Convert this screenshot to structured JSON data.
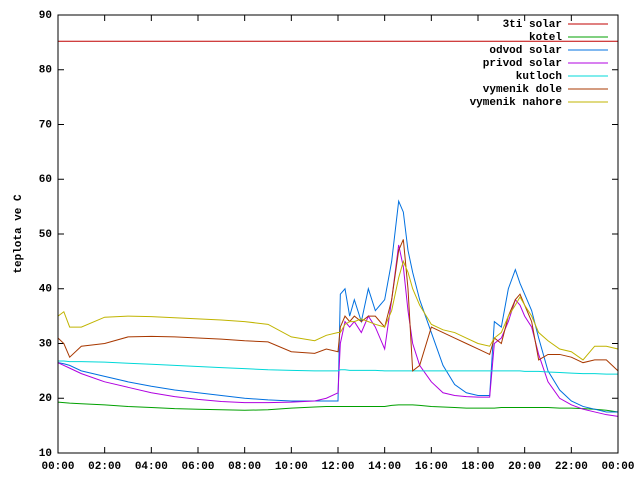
{
  "chart_data": {
    "type": "line",
    "y_label": "teplota ve C",
    "x": [
      0,
      0.25,
      0.5,
      1,
      2,
      3,
      4,
      5,
      6,
      7,
      8,
      9,
      10,
      11,
      11.5,
      12,
      12.1,
      12.3,
      12.5,
      12.7,
      13,
      13.3,
      13.6,
      14,
      14.3,
      14.6,
      14.8,
      15,
      15.2,
      15.5,
      16,
      16.5,
      17,
      17.5,
      18,
      18.5,
      18.7,
      19,
      19.3,
      19.6,
      19.8,
      20,
      20.3,
      20.6,
      21,
      21.5,
      22,
      22.5,
      23,
      23.5,
      24
    ],
    "xlim": [
      0,
      24
    ],
    "xticks": [
      {
        "value": 0,
        "label": "00:00"
      },
      {
        "value": 2,
        "label": "02:00"
      },
      {
        "value": 4,
        "label": "04:00"
      },
      {
        "value": 6,
        "label": "06:00"
      },
      {
        "value": 8,
        "label": "08:00"
      },
      {
        "value": 10,
        "label": "10:00"
      },
      {
        "value": 12,
        "label": "12:00"
      },
      {
        "value": 14,
        "label": "14:00"
      },
      {
        "value": 16,
        "label": "16:00"
      },
      {
        "value": 18,
        "label": "18:00"
      },
      {
        "value": 20,
        "label": "20:00"
      },
      {
        "value": 22,
        "label": "22:00"
      },
      {
        "value": 24,
        "label": "00:00"
      }
    ],
    "ylim": [
      10,
      90
    ],
    "yticks": [
      10,
      20,
      30,
      40,
      50,
      60,
      70,
      80,
      90
    ],
    "grid": false,
    "legend": "top-right",
    "series": [
      {
        "name": "3ti solar",
        "color": "#c00000",
        "values": [
          85.2,
          85.2,
          85.2,
          85.2,
          85.2,
          85.2,
          85.2,
          85.2,
          85.2,
          85.2,
          85.2,
          85.2,
          85.2,
          85.2,
          85.2,
          85.2,
          85.2,
          85.2,
          85.2,
          85.2,
          85.2,
          85.2,
          85.2,
          85.2,
          85.2,
          85.2,
          85.2,
          85.2,
          85.2,
          85.2,
          85.2,
          85.2,
          85.2,
          85.2,
          85.2,
          85.2,
          85.2,
          85.2,
          85.2,
          85.2,
          85.2,
          85.2,
          85.2,
          85.2,
          85.2,
          85.2,
          85.2,
          85.2,
          85.2,
          85.2,
          85.2
        ]
      },
      {
        "name": "kotel",
        "color": "#00a000",
        "values": [
          19.3,
          19.2,
          19.1,
          19,
          18.8,
          18.5,
          18.3,
          18.1,
          18,
          17.9,
          17.8,
          17.9,
          18.2,
          18.4,
          18.5,
          18.5,
          18.5,
          18.5,
          18.5,
          18.5,
          18.5,
          18.5,
          18.5,
          18.5,
          18.7,
          18.8,
          18.8,
          18.8,
          18.8,
          18.7,
          18.5,
          18.4,
          18.3,
          18.2,
          18.2,
          18.2,
          18.2,
          18.3,
          18.3,
          18.3,
          18.3,
          18.3,
          18.3,
          18.3,
          18.3,
          18.2,
          18.2,
          18.1,
          18,
          17.8,
          17.5
        ]
      },
      {
        "name": "odvod solar",
        "color": "#0070e0",
        "values": [
          26.5,
          26.3,
          26,
          25,
          24,
          23,
          22.2,
          21.5,
          21,
          20.5,
          20,
          19.7,
          19.5,
          19.5,
          19.5,
          19.5,
          39,
          40,
          35,
          38,
          34,
          40,
          36,
          38,
          45,
          56,
          54,
          47,
          43,
          38,
          32,
          26,
          22.5,
          21,
          20.5,
          20.5,
          34,
          33,
          40,
          43.5,
          41,
          39,
          36,
          31,
          25,
          21.5,
          19.5,
          18.5,
          18,
          17.5,
          17.5
        ]
      },
      {
        "name": "privod solar",
        "color": "#b000e0",
        "values": [
          26.5,
          26,
          25.5,
          24.5,
          23,
          22,
          21,
          20.3,
          19.8,
          19.4,
          19.2,
          19.2,
          19.3,
          19.5,
          20,
          21,
          30,
          34,
          33,
          34,
          32,
          35,
          33,
          29,
          38,
          48,
          44,
          36,
          30,
          26,
          23,
          21,
          20.5,
          20.3,
          20.2,
          20.2,
          30,
          31,
          34,
          38,
          37,
          35,
          33,
          28,
          23,
          20,
          18.8,
          18,
          17.5,
          17,
          16.7
        ]
      },
      {
        "name": "kutloch",
        "color": "#00d8d8",
        "values": [
          26.8,
          26.8,
          26.7,
          26.7,
          26.6,
          26.4,
          26.2,
          26,
          25.8,
          25.6,
          25.4,
          25.2,
          25.1,
          25,
          25,
          25,
          25.2,
          25.2,
          25.1,
          25.1,
          25.1,
          25.1,
          25.1,
          25,
          25,
          25,
          25,
          25,
          25,
          25,
          25,
          25,
          25,
          25,
          25,
          25,
          25,
          25,
          25,
          25,
          25,
          24.9,
          24.9,
          24.9,
          24.8,
          24.7,
          24.6,
          24.5,
          24.5,
          24.4,
          24.4
        ]
      },
      {
        "name": "vymenik dole",
        "color": "#a83800",
        "values": [
          31,
          30,
          27.5,
          29.5,
          30,
          31.2,
          31.3,
          31.2,
          31,
          30.8,
          30.5,
          30.3,
          28.5,
          28.2,
          29,
          28.5,
          33,
          35,
          34,
          35,
          34,
          35,
          35,
          33,
          38,
          47,
          49,
          40,
          25,
          26,
          33,
          32,
          31,
          30,
          29,
          28,
          31,
          30,
          35,
          38,
          39,
          37,
          34,
          27,
          28,
          28,
          27.5,
          26.5,
          27,
          27,
          25
        ]
      },
      {
        "name": "vymenik nahore",
        "color": "#c0b400",
        "values": [
          35,
          35.8,
          33,
          33,
          34.8,
          35,
          34.9,
          34.7,
          34.5,
          34.3,
          34,
          33.5,
          31.2,
          30.5,
          31.5,
          32,
          32,
          33.5,
          34,
          34,
          34.5,
          34,
          33.5,
          33,
          36,
          42,
          45,
          43,
          40,
          37,
          33.5,
          32.5,
          32,
          31,
          30,
          29.5,
          31,
          32,
          35,
          37,
          38.5,
          37,
          35,
          32,
          30.5,
          29,
          28.5,
          27,
          29.5,
          29.5,
          29
        ]
      }
    ]
  }
}
